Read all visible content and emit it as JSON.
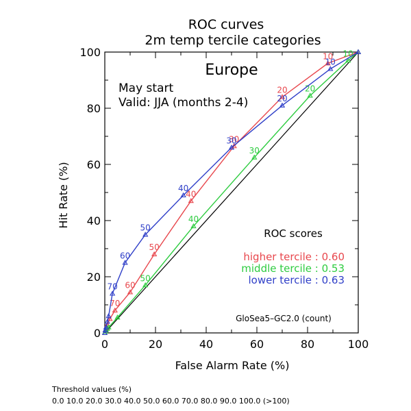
{
  "chart_data": {
    "type": "line",
    "title": "ROC curves",
    "subtitle": "2m temp tercile categories",
    "region": "Europe",
    "annotations": [
      "May start",
      "Valid: JJA (months 2-4)"
    ],
    "xlabel": "False Alarm Rate (%)",
    "ylabel": "Hit Rate (%)",
    "xlim": [
      0,
      100
    ],
    "ylim": [
      0,
      100
    ],
    "x_ticks": [
      "0",
      "20",
      "40",
      "60",
      "80",
      "100"
    ],
    "y_ticks": [
      "0",
      "20",
      "40",
      "60",
      "80",
      "100"
    ],
    "grid": false,
    "diagonal_reference": true,
    "scores_title": "ROC scores",
    "scores": [
      {
        "label": "higher tercile : 0.60",
        "color": "#e8474d"
      },
      {
        "label": "middle tercile : 0.53",
        "color": "#2ecc40"
      },
      {
        "label": "lower tercile : 0.63",
        "color": "#2f3fc8"
      }
    ],
    "model_label": "GloSea5–GC2.0 (count)",
    "series": [
      {
        "name": "higher tercile",
        "color": "#e8474d",
        "x": [
          0,
          0.3,
          0.6,
          1,
          2,
          4,
          10,
          19.5,
          34,
          51,
          70,
          88,
          100
        ],
        "y": [
          0,
          1,
          1.5,
          3,
          5,
          8,
          14.5,
          28,
          47,
          66.5,
          84,
          96,
          100
        ],
        "labels": [
          "",
          "",
          "",
          "",
          "",
          "70",
          "60",
          "50",
          "40",
          "30",
          "20",
          "10",
          ""
        ]
      },
      {
        "name": "middle tercile",
        "color": "#2ecc40",
        "x": [
          0,
          0.2,
          0.5,
          1,
          1.5,
          5,
          16,
          35,
          59,
          81,
          96,
          100
        ],
        "y": [
          0,
          0.5,
          1,
          1.5,
          2,
          5.5,
          17,
          38,
          62.5,
          84.5,
          97,
          100
        ],
        "labels": [
          "",
          "",
          "",
          "",
          "",
          "",
          "50",
          "40",
          "30",
          "20",
          "10",
          ""
        ]
      },
      {
        "name": "lower tercile",
        "color": "#2f3fc8",
        "x": [
          0,
          0.2,
          0.5,
          1,
          1.5,
          3,
          8,
          16,
          31,
          50,
          70,
          89,
          100
        ],
        "y": [
          0,
          1,
          2,
          4,
          6,
          14,
          25,
          35,
          49,
          66,
          81,
          94,
          100
        ],
        "labels": [
          "",
          "",
          "",
          "",
          "",
          "70",
          "60",
          "50",
          "40",
          "30",
          "20",
          "10",
          ""
        ]
      }
    ]
  },
  "footer": {
    "threshold_title": "Threshold values (%)",
    "threshold_values": "0.0 10.0 20.0 30.0 40.0 50.0 60.0 70.0 80.0 90.0 100.0 (>100)"
  }
}
